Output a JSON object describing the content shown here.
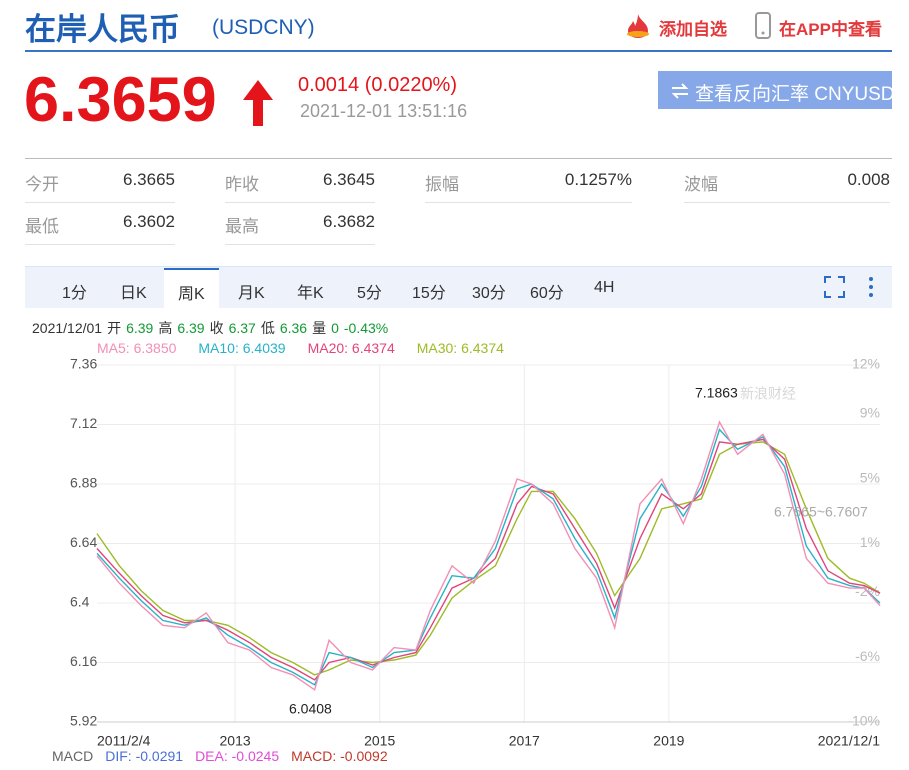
{
  "header": {
    "title": "在岸人民币",
    "code": "(USDCNY)",
    "add_watch": "添加自选",
    "view_app": "在APP中查看"
  },
  "quote": {
    "price": "6.3659",
    "change": "0.0014 (0.0220%)",
    "time": "2021-12-01 13:51:16",
    "reverse_button": "查看反向汇率 CNYUSD"
  },
  "stats": [
    [
      "今开",
      "6.3665"
    ],
    [
      "昨收",
      "6.3645"
    ],
    [
      "振幅",
      "0.1257%"
    ],
    [
      "波幅",
      "0.008"
    ],
    [
      "最低",
      "6.3602"
    ],
    [
      "最高",
      "6.3682"
    ]
  ],
  "tabs": [
    "1分",
    "日K",
    "周K",
    "月K",
    "年K",
    "5分",
    "15分",
    "30分",
    "60分",
    "4H"
  ],
  "selected_tab": "周K",
  "ohlc_info": [
    "2021/12/01",
    "开",
    "6.39",
    "高",
    "6.39",
    "收",
    "6.37",
    "低",
    "6.36",
    "量",
    "0",
    "-0.43%"
  ],
  "chart_data": {
    "type": "line",
    "x": [
      2011.09,
      2011.4,
      2011.7,
      2012.0,
      2012.3,
      2012.6,
      2012.9,
      2013.2,
      2013.5,
      2013.8,
      2014.1,
      2014.3,
      2014.6,
      2014.9,
      2015.2,
      2015.5,
      2015.7,
      2016.0,
      2016.3,
      2016.6,
      2016.9,
      2017.1,
      2017.4,
      2017.7,
      2018.0,
      2018.25,
      2018.6,
      2018.9,
      2019.2,
      2019.45,
      2019.7,
      2019.95,
      2020.3,
      2020.6,
      2020.9,
      2021.2,
      2021.5,
      2021.7,
      2021.92
    ],
    "series": [
      {
        "name": "MA5: 6.3850",
        "color": "#f28fb5",
        "values": [
          6.59,
          6.48,
          6.39,
          6.31,
          6.3,
          6.36,
          6.24,
          6.21,
          6.14,
          6.11,
          6.05,
          6.25,
          6.16,
          6.13,
          6.22,
          6.21,
          6.37,
          6.55,
          6.48,
          6.65,
          6.9,
          6.88,
          6.8,
          6.62,
          6.5,
          6.3,
          6.8,
          6.9,
          6.72,
          6.9,
          7.13,
          7.0,
          7.08,
          6.92,
          6.58,
          6.48,
          6.46,
          6.46,
          6.39
        ]
      },
      {
        "name": "MA10: 6.4039",
        "color": "#27b2c8",
        "values": [
          6.6,
          6.5,
          6.41,
          6.33,
          6.31,
          6.34,
          6.27,
          6.22,
          6.16,
          6.12,
          6.07,
          6.2,
          6.18,
          6.14,
          6.2,
          6.21,
          6.34,
          6.51,
          6.5,
          6.62,
          6.86,
          6.88,
          6.82,
          6.66,
          6.53,
          6.34,
          6.74,
          6.88,
          6.75,
          6.87,
          7.1,
          7.02,
          7.07,
          6.95,
          6.63,
          6.5,
          6.47,
          6.46,
          6.4
        ]
      },
      {
        "name": "MA20: 6.4374",
        "color": "#e0457b",
        "values": [
          6.62,
          6.52,
          6.43,
          6.35,
          6.32,
          6.33,
          6.29,
          6.24,
          6.18,
          6.14,
          6.09,
          6.16,
          6.18,
          6.15,
          6.18,
          6.2,
          6.3,
          6.46,
          6.5,
          6.58,
          6.8,
          6.87,
          6.84,
          6.7,
          6.56,
          6.38,
          6.66,
          6.84,
          6.78,
          6.84,
          7.05,
          7.04,
          7.06,
          6.98,
          6.7,
          6.53,
          6.48,
          6.47,
          6.44
        ]
      },
      {
        "name": "MA30: 6.4374",
        "color": "#9dbb27",
        "values": [
          6.68,
          6.55,
          6.45,
          6.37,
          6.33,
          6.33,
          6.31,
          6.26,
          6.2,
          6.16,
          6.11,
          6.13,
          6.17,
          6.16,
          6.17,
          6.19,
          6.27,
          6.42,
          6.49,
          6.55,
          6.74,
          6.85,
          6.85,
          6.74,
          6.6,
          6.43,
          6.58,
          6.78,
          6.8,
          6.82,
          7.0,
          7.04,
          7.05,
          7.0,
          6.78,
          6.58,
          6.5,
          6.48,
          6.44
        ]
      }
    ],
    "xlim": [
      2011.09,
      2021.92
    ],
    "xticks": [
      {
        "value": 2011.09,
        "label": "2011/2/4"
      },
      2013,
      2015,
      2017,
      2019,
      {
        "value": 2021.92,
        "label": "2021/12/1"
      }
    ],
    "ylim": [
      5.92,
      7.36
    ],
    "yticks": [
      5.92,
      6.16,
      6.4,
      6.64,
      6.88,
      7.12,
      7.36
    ],
    "y2lim": [
      -10,
      12
    ],
    "y2ticks": [
      {
        "value": -10,
        "label": "-10%"
      },
      {
        "value": -6,
        "label": "-6%"
      },
      {
        "value": -2,
        "label": "-2%"
      },
      {
        "value": 1,
        "label": "1%"
      },
      {
        "value": 5,
        "label": "5%"
      },
      {
        "value": 9,
        "label": "9%"
      },
      {
        "value": 12,
        "label": "12%"
      }
    ],
    "grid": true,
    "annotations": [
      "7.1863",
      "6.0408",
      "6.7665~6.7607"
    ],
    "watermark": "新浪财经"
  },
  "macd": [
    "MACD",
    "DIF: -0.0291",
    "DEA: -0.0245",
    "MACD: -0.0092"
  ]
}
